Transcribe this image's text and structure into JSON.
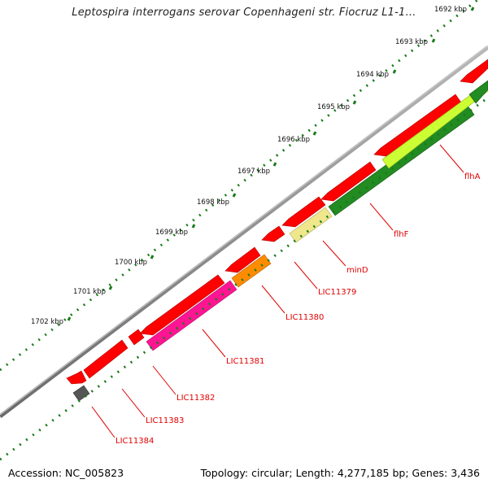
{
  "title": "Leptospira interrogans serovar Copenhageni str. Fiocruz L1-1…",
  "footer": {
    "accession": "Accession: NC_005823",
    "summary": "Topology: circular; Length: 4,277,185 bp; Genes: 3,436"
  },
  "ruler_ticks": [
    "1692 kbp",
    "1693 kbp",
    "1694 kbp",
    "1695 kbp",
    "1696 kbp",
    "1697 kbp",
    "1698 kbp",
    "1699 kbp",
    "1700 kbp",
    "1701 kbp",
    "1702 kbp"
  ],
  "genes": [
    {
      "label": "flhA",
      "color": "#ccff33"
    },
    {
      "label": "flhF",
      "color": "#228b22"
    },
    {
      "label": "minD",
      "color": "#f0e68c"
    },
    {
      "label": "LIC11379",
      "color": "#ff0000"
    },
    {
      "label": "LIC11380",
      "color": "#ff8c00"
    },
    {
      "label": "LIC11381",
      "color": "#ff1493"
    },
    {
      "label": "LIC11382",
      "color": "#ff0000"
    },
    {
      "label": "LIC11383",
      "color": "#ff0000"
    },
    {
      "label": "LIC11384",
      "color": "#555555"
    }
  ],
  "colors": {
    "backbone": "#808080",
    "forward_strand": "#ff0000",
    "tick_green": "#1a7a1a",
    "label_red": "#e00000"
  }
}
